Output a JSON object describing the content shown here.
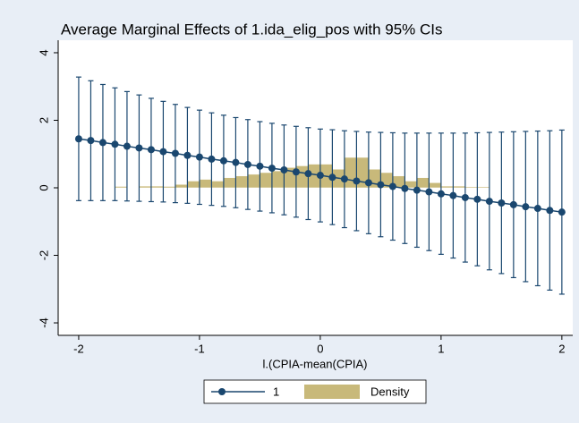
{
  "chart_data": {
    "type": "line",
    "title": "Average Marginal Effects of 1.ida_elig_pos with 95% CIs",
    "x_label": "l.(CPIA-mean(CPIA)",
    "x": [
      -2.0,
      -1.9,
      -1.8,
      -1.7,
      -1.6,
      -1.5,
      -1.4,
      -1.3,
      -1.2,
      -1.1,
      -1.0,
      -0.9,
      -0.8,
      -0.7,
      -0.6,
      -0.5,
      -0.4,
      -0.3,
      -0.2,
      -0.1,
      0.0,
      0.1,
      0.2,
      0.3,
      0.4,
      0.5,
      0.6,
      0.7,
      0.8,
      0.9,
      1.0,
      1.1,
      1.2,
      1.3,
      1.4,
      1.5,
      1.6,
      1.7,
      1.8,
      1.9,
      2.0
    ],
    "series": [
      {
        "name": "1",
        "color": "#1a476f",
        "values": [
          1.45,
          1.4,
          1.34,
          1.29,
          1.23,
          1.18,
          1.13,
          1.07,
          1.02,
          0.96,
          0.91,
          0.85,
          0.8,
          0.75,
          0.69,
          0.64,
          0.58,
          0.53,
          0.47,
          0.42,
          0.37,
          0.31,
          0.26,
          0.2,
          0.15,
          0.09,
          0.04,
          -0.02,
          -0.07,
          -0.12,
          -0.18,
          -0.23,
          -0.29,
          -0.34,
          -0.4,
          -0.45,
          -0.5,
          -0.56,
          -0.61,
          -0.67,
          -0.72
        ],
        "ci_lower": [
          -0.38,
          -0.38,
          -0.38,
          -0.38,
          -0.39,
          -0.4,
          -0.41,
          -0.42,
          -0.44,
          -0.46,
          -0.49,
          -0.52,
          -0.55,
          -0.59,
          -0.64,
          -0.69,
          -0.74,
          -0.8,
          -0.87,
          -0.94,
          -1.01,
          -1.09,
          -1.18,
          -1.27,
          -1.36,
          -1.45,
          -1.55,
          -1.65,
          -1.76,
          -1.86,
          -1.97,
          -2.08,
          -2.2,
          -2.31,
          -2.43,
          -2.54,
          -2.66,
          -2.78,
          -2.9,
          -3.03,
          -3.15
        ],
        "ci_upper": [
          3.28,
          3.17,
          3.06,
          2.96,
          2.85,
          2.75,
          2.65,
          2.56,
          2.47,
          2.38,
          2.3,
          2.22,
          2.15,
          2.08,
          2.02,
          1.96,
          1.91,
          1.86,
          1.82,
          1.78,
          1.74,
          1.72,
          1.69,
          1.67,
          1.65,
          1.64,
          1.63,
          1.62,
          1.62,
          1.62,
          1.62,
          1.62,
          1.62,
          1.63,
          1.64,
          1.65,
          1.66,
          1.67,
          1.68,
          1.69,
          1.71
        ]
      }
    ],
    "histogram": {
      "name": "Density",
      "color": "#c8b97a",
      "bins": [
        -1.7,
        -1.6,
        -1.5,
        -1.4,
        -1.3,
        -1.2,
        -1.1,
        -1.0,
        -0.9,
        -0.8,
        -0.7,
        -0.6,
        -0.5,
        -0.4,
        -0.3,
        -0.2,
        -0.1,
        0.0,
        0.1,
        0.2,
        0.3,
        0.4,
        0.5,
        0.6,
        0.7,
        0.8,
        0.9,
        1.0,
        1.1,
        1.2,
        1.3,
        1.4
      ],
      "counts": [
        0.04,
        0,
        0.05,
        0.05,
        0.04,
        0.1,
        0.2,
        0.25,
        0.2,
        0.3,
        0.35,
        0.4,
        0.45,
        0.5,
        0.6,
        0.65,
        0.7,
        0.7,
        0.55,
        0.9,
        0.9,
        0.55,
        0.45,
        0.35,
        0.2,
        0.3,
        0.15,
        0.05,
        0.05,
        0.03,
        0.03
      ]
    },
    "xlim": [
      -2.17,
      2.09
    ],
    "xticks": [
      -2,
      -1,
      0,
      1,
      2
    ],
    "ylim": [
      -4.37,
      4.37
    ],
    "yticks": [
      -4,
      -2,
      0,
      2,
      4
    ],
    "grid": false
  }
}
